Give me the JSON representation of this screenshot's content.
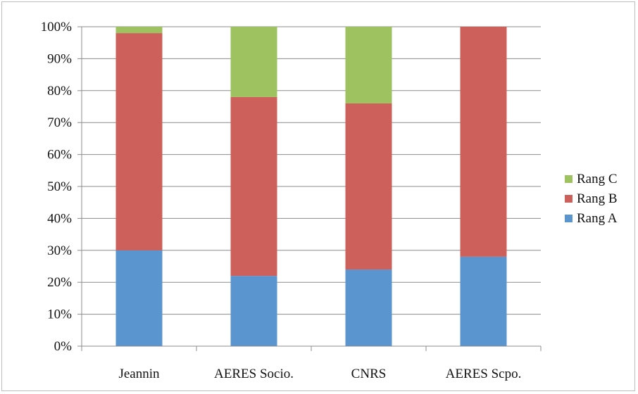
{
  "chart_data": {
    "type": "bar",
    "stacked": true,
    "categories": [
      "Jeannin",
      "AERES Socio.",
      "CNRS",
      "AERES Scpo."
    ],
    "series": [
      {
        "name": "Rang A",
        "values": [
          30,
          22,
          24,
          28
        ],
        "color": "#5b95cf"
      },
      {
        "name": "Rang B",
        "values": [
          68,
          56,
          52,
          72
        ],
        "color": "#cd605a"
      },
      {
        "name": "Rang C",
        "values": [
          2,
          22,
          24,
          0
        ],
        "color": "#9dc25f"
      }
    ],
    "title": "",
    "xlabel": "",
    "ylabel": "",
    "ylim": [
      0,
      100
    ],
    "yticks": [
      "0%",
      "10%",
      "20%",
      "30%",
      "40%",
      "50%",
      "60%",
      "70%",
      "80%",
      "90%",
      "100%"
    ],
    "grid": true,
    "legend": "right"
  }
}
